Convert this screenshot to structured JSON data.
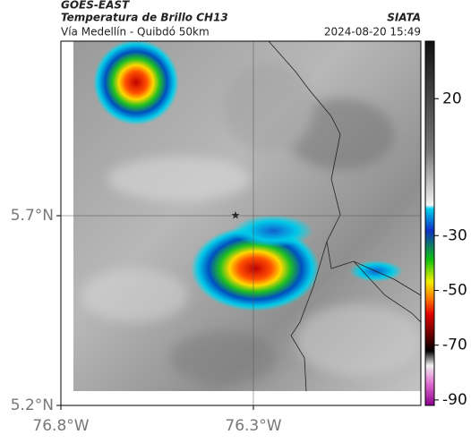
{
  "header": {
    "title": "GOES-EAST",
    "subtitle": "Temperatura de Brillo CH13",
    "place": "Vía Medellín - Quibdó 50km",
    "source": "SIATA",
    "datetime": "2024-08-20 15:49"
  },
  "map": {
    "xlim": [
      -76.8,
      -75.865
    ],
    "ylim": [
      5.2,
      6.16
    ],
    "xticks": [
      {
        "value": -76.8,
        "label": "76.8°W"
      },
      {
        "value": -76.3,
        "label": "76.3°W"
      }
    ],
    "yticks": [
      {
        "value": 5.2,
        "label": "5.2°N"
      },
      {
        "value": 5.7,
        "label": "5.7°N"
      }
    ]
  },
  "colorbar": {
    "lim": [
      -92,
      41
    ],
    "ticks": [
      20,
      -30,
      -50,
      -70,
      -90
    ]
  }
}
